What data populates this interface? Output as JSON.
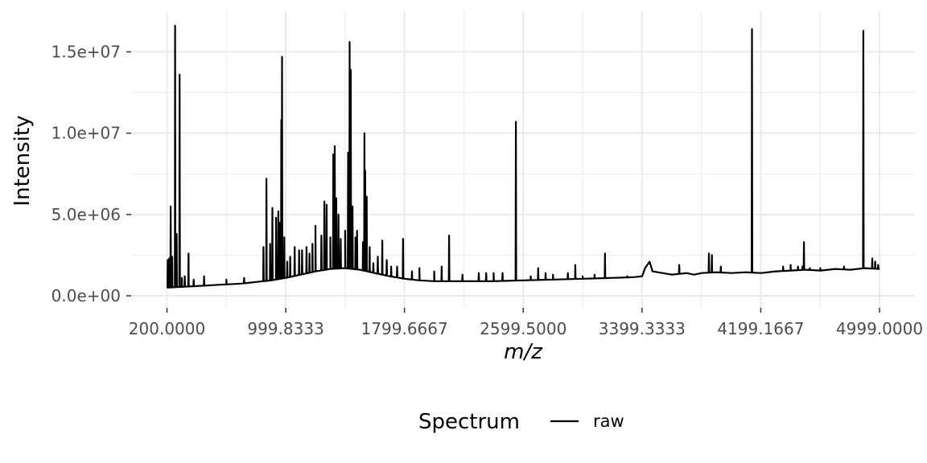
{
  "chart_data": {
    "type": "line",
    "title": "",
    "xlabel": "m/z",
    "ylabel": "Intensity",
    "xlim": [
      200,
      5000
    ],
    "ylim": [
      0,
      16500000
    ],
    "x_ticks": [
      200.0,
      999.8333,
      1799.6667,
      2599.5,
      3399.3333,
      4199.1667,
      4999.0
    ],
    "x_tick_labels": [
      "200.0000",
      "999.8333",
      "1799.6667",
      "2599.5000",
      "3399.3333",
      "4199.1667",
      "4999.0000"
    ],
    "y_ticks": [
      0,
      5000000,
      10000000,
      15000000
    ],
    "y_tick_labels": [
      "0.0e+00",
      "5.0e+06",
      "1.0e+07",
      "1.5e+07"
    ],
    "grid": true,
    "legend": {
      "title": "Spectrum",
      "position": "bottom"
    },
    "line_color": "#000000",
    "series": [
      {
        "name": "raw",
        "baseline": [
          [
            200,
            500000
          ],
          [
            300,
            550000
          ],
          [
            400,
            600000
          ],
          [
            500,
            650000
          ],
          [
            600,
            700000
          ],
          [
            700,
            750000
          ],
          [
            800,
            850000
          ],
          [
            900,
            950000
          ],
          [
            1000,
            1100000
          ],
          [
            1100,
            1300000
          ],
          [
            1200,
            1500000
          ],
          [
            1300,
            1650000
          ],
          [
            1400,
            1700000
          ],
          [
            1500,
            1600000
          ],
          [
            1600,
            1400000
          ],
          [
            1700,
            1200000
          ],
          [
            1800,
            1050000
          ],
          [
            1900,
            950000
          ],
          [
            2000,
            900000
          ],
          [
            2200,
            900000
          ],
          [
            2400,
            900000
          ],
          [
            2600,
            950000
          ],
          [
            2800,
            1000000
          ],
          [
            3000,
            1050000
          ],
          [
            3200,
            1100000
          ],
          [
            3350,
            1150000
          ],
          [
            3400,
            1200000
          ],
          [
            3420,
            1700000
          ],
          [
            3450,
            2100000
          ],
          [
            3470,
            1500000
          ],
          [
            3600,
            1300000
          ],
          [
            3700,
            1400000
          ],
          [
            3750,
            1300000
          ],
          [
            3800,
            1400000
          ],
          [
            3900,
            1450000
          ],
          [
            4000,
            1400000
          ],
          [
            4100,
            1450000
          ],
          [
            4200,
            1400000
          ],
          [
            4300,
            1500000
          ],
          [
            4400,
            1550000
          ],
          [
            4500,
            1600000
          ],
          [
            4600,
            1550000
          ],
          [
            4700,
            1650000
          ],
          [
            4800,
            1600000
          ],
          [
            4900,
            1700000
          ],
          [
            5000,
            1650000
          ]
        ],
        "peaks": [
          [
            205,
            2200000
          ],
          [
            215,
            2300000
          ],
          [
            225,
            5500000
          ],
          [
            235,
            2400000
          ],
          [
            255,
            16600000
          ],
          [
            265,
            3800000
          ],
          [
            285,
            13600000
          ],
          [
            300,
            1100000
          ],
          [
            320,
            1200000
          ],
          [
            345,
            2600000
          ],
          [
            380,
            1000000
          ],
          [
            450,
            1200000
          ],
          [
            600,
            1000000
          ],
          [
            720,
            1100000
          ],
          [
            850,
            3000000
          ],
          [
            870,
            7200000
          ],
          [
            895,
            3200000
          ],
          [
            910,
            5400000
          ],
          [
            935,
            4800000
          ],
          [
            950,
            5200000
          ],
          [
            960,
            4500000
          ],
          [
            970,
            10800000
          ],
          [
            975,
            14700000
          ],
          [
            990,
            3600000
          ],
          [
            1010,
            2100000
          ],
          [
            1030,
            2400000
          ],
          [
            1060,
            3000000
          ],
          [
            1090,
            2800000
          ],
          [
            1110,
            2800000
          ],
          [
            1140,
            3000000
          ],
          [
            1160,
            2600000
          ],
          [
            1180,
            3200000
          ],
          [
            1200,
            4300000
          ],
          [
            1240,
            3700000
          ],
          [
            1260,
            5800000
          ],
          [
            1275,
            5600000
          ],
          [
            1300,
            3600000
          ],
          [
            1320,
            8700000
          ],
          [
            1330,
            9200000
          ],
          [
            1340,
            6000000
          ],
          [
            1355,
            5000000
          ],
          [
            1370,
            3500000
          ],
          [
            1400,
            4000000
          ],
          [
            1420,
            8800000
          ],
          [
            1430,
            15600000
          ],
          [
            1438,
            13900000
          ],
          [
            1450,
            5500000
          ],
          [
            1470,
            3600000
          ],
          [
            1480,
            4000000
          ],
          [
            1520,
            3300000
          ],
          [
            1530,
            10000000
          ],
          [
            1535,
            7700000
          ],
          [
            1545,
            6100000
          ],
          [
            1565,
            3000000
          ],
          [
            1590,
            2000000
          ],
          [
            1620,
            2400000
          ],
          [
            1650,
            3400000
          ],
          [
            1680,
            2200000
          ],
          [
            1710,
            1800000
          ],
          [
            1750,
            1800000
          ],
          [
            1790,
            3500000
          ],
          [
            1850,
            1500000
          ],
          [
            1900,
            1700000
          ],
          [
            2000,
            1500000
          ],
          [
            2050,
            1800000
          ],
          [
            2100,
            3700000
          ],
          [
            2190,
            1300000
          ],
          [
            2300,
            1400000
          ],
          [
            2350,
            1400000
          ],
          [
            2400,
            1400000
          ],
          [
            2460,
            1400000
          ],
          [
            2550,
            10700000
          ],
          [
            2650,
            1200000
          ],
          [
            2700,
            1700000
          ],
          [
            2750,
            1400000
          ],
          [
            2800,
            1300000
          ],
          [
            2900,
            1400000
          ],
          [
            2950,
            1900000
          ],
          [
            3000,
            1200000
          ],
          [
            3080,
            1300000
          ],
          [
            3150,
            2600000
          ],
          [
            3300,
            1200000
          ],
          [
            3650,
            1900000
          ],
          [
            3850,
            2600000
          ],
          [
            3870,
            2500000
          ],
          [
            3930,
            1800000
          ],
          [
            4140,
            16400000
          ],
          [
            4350,
            1800000
          ],
          [
            4400,
            1900000
          ],
          [
            4450,
            1800000
          ],
          [
            4480,
            1800000
          ],
          [
            4490,
            3300000
          ],
          [
            4530,
            1700000
          ],
          [
            4600,
            1700000
          ],
          [
            4760,
            1800000
          ],
          [
            4890,
            16300000
          ],
          [
            4950,
            2300000
          ],
          [
            4970,
            2100000
          ],
          [
            4990,
            1900000
          ]
        ]
      }
    ]
  }
}
